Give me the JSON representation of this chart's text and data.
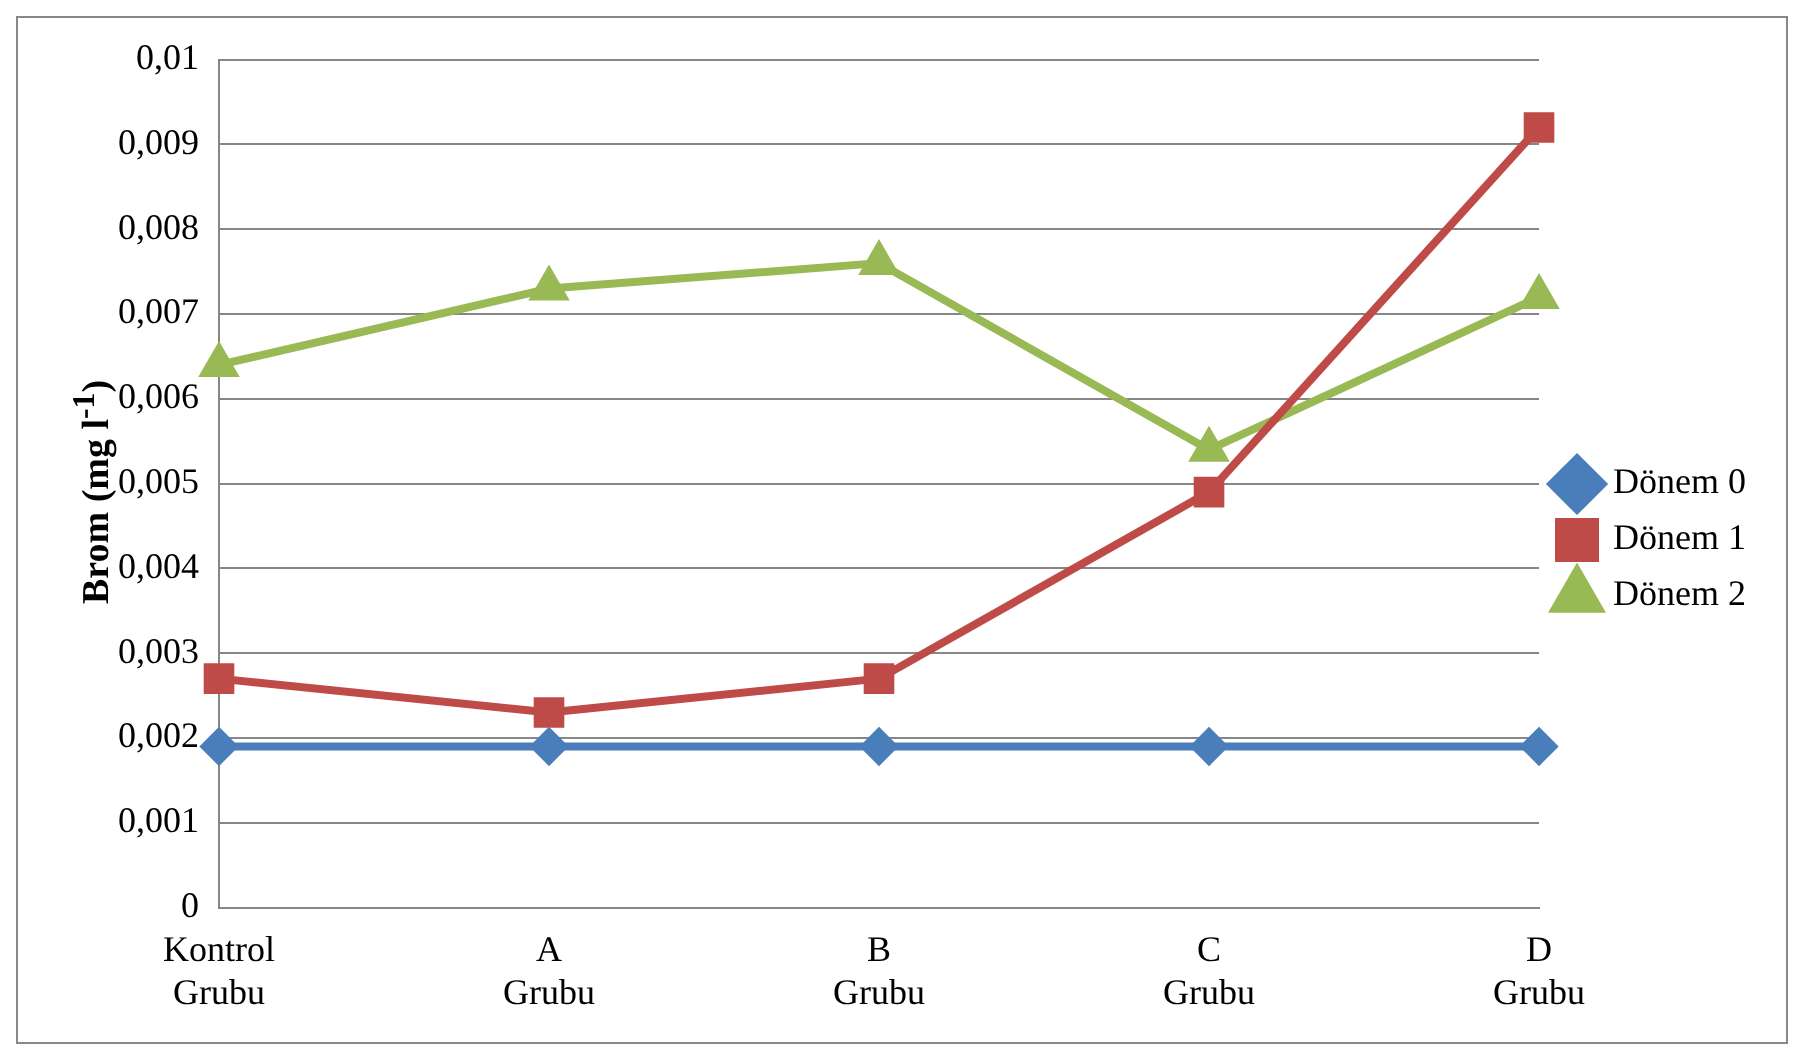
{
  "chart_data": {
    "type": "line",
    "ylabel": "Brom (mg l$^{-1}$)",
    "categories": [
      "Kontrol Grubu",
      "A Grubu",
      "B Grubu",
      "C Grubu",
      "D Grubu"
    ],
    "series": [
      {
        "name": "Dönem 0",
        "color": "#4a7ebb",
        "marker": "diamond",
        "values": [
          0.0019,
          0.0019,
          0.0019,
          0.0019,
          0.0019
        ]
      },
      {
        "name": "Dönem 1",
        "color": "#be4b48",
        "marker": "square",
        "values": [
          0.0027,
          0.0023,
          0.0027,
          0.0049,
          0.0092
        ]
      },
      {
        "name": "Dönem 2",
        "color": "#98b954",
        "marker": "triangle",
        "values": [
          0.0064,
          0.0073,
          0.0076,
          0.0054,
          0.0072
        ]
      }
    ],
    "ylim": [
      0,
      0.01
    ],
    "yticks": [
      0,
      {
        "value": 0.001,
        "label": "0,001"
      },
      {
        "value": 0.002,
        "label": "0,002"
      },
      {
        "value": 0.003,
        "label": "0,003"
      },
      {
        "value": 0.004,
        "label": "0,004"
      },
      {
        "value": 0.005,
        "label": "0,005"
      },
      {
        "value": 0.006,
        "label": "0,006"
      },
      {
        "value": 0.007,
        "label": "0,007"
      },
      {
        "value": 0.008,
        "label": "0,008"
      },
      {
        "value": 0.009,
        "label": "0,009"
      },
      {
        "value": 0.01,
        "label": "0,01"
      }
    ],
    "grid": "y",
    "legend": "right",
    "line_style": "solid"
  }
}
